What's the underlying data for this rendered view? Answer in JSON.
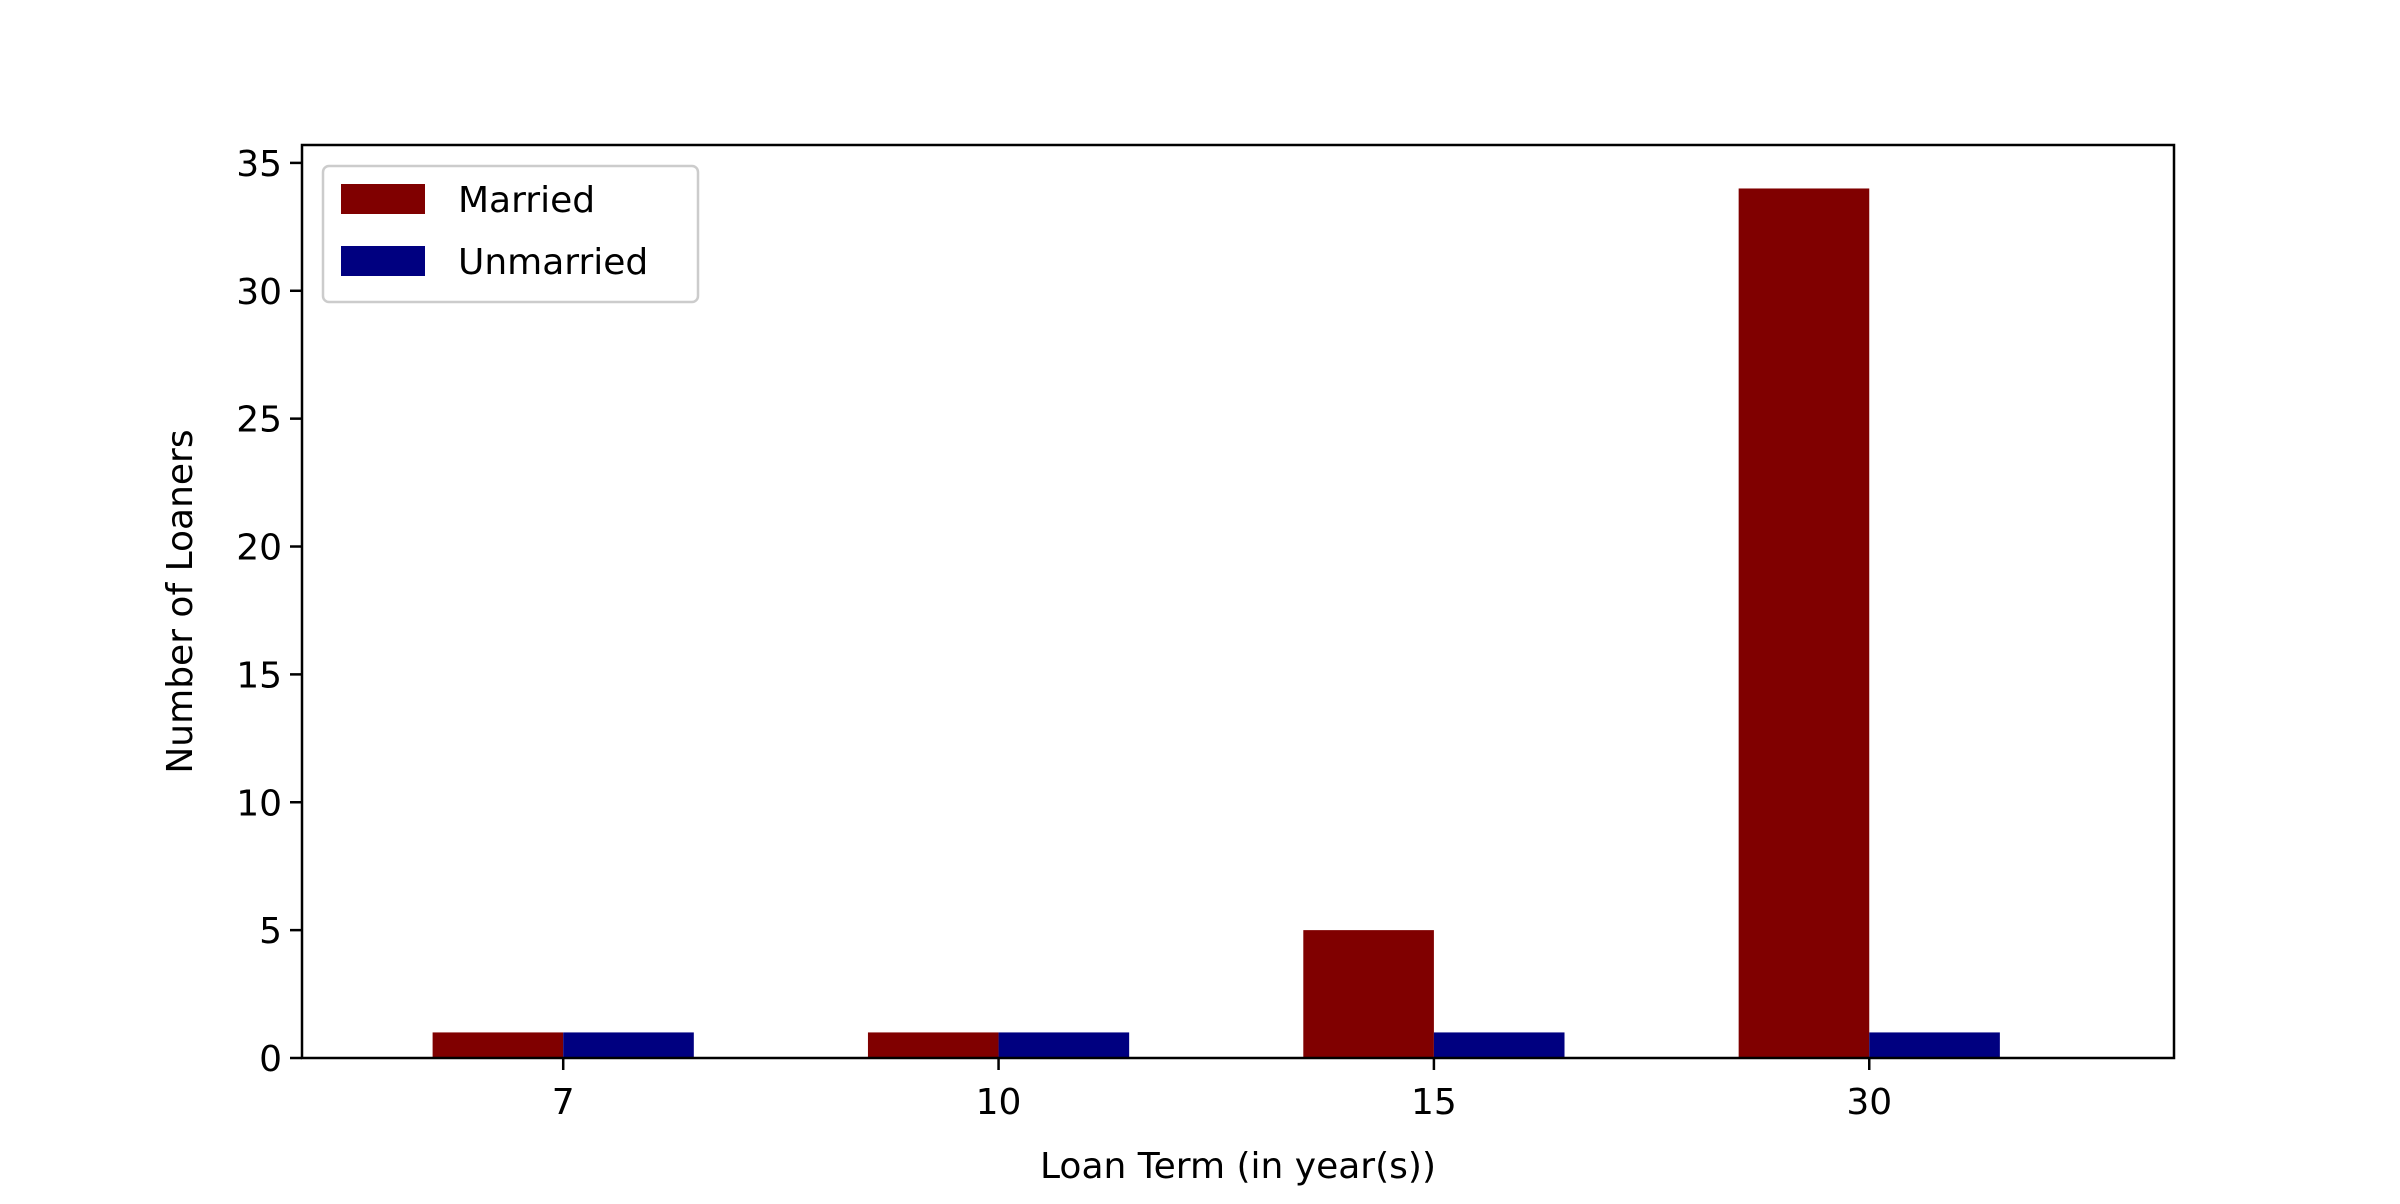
{
  "chart_data": {
    "type": "bar",
    "title": "",
    "xlabel": "Loan Term (in year(s))",
    "ylabel": "Number of Loaners",
    "categories": [
      "7",
      "10",
      "15",
      "30"
    ],
    "series": [
      {
        "name": "Married",
        "values": [
          1,
          1,
          5,
          34
        ],
        "color": "#800000"
      },
      {
        "name": "Unmarried",
        "values": [
          1,
          1,
          1,
          1
        ],
        "color": "#000080"
      }
    ],
    "ylim": [
      0,
      35.7
    ],
    "yticks": [
      0,
      5,
      10,
      15,
      20,
      25,
      30,
      35
    ],
    "grid": false,
    "legend_position": "top-left"
  }
}
